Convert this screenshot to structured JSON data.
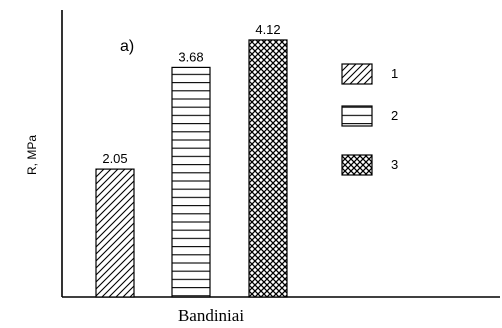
{
  "chart_data": {
    "type": "bar",
    "title": "",
    "panel_label": "a)",
    "xlabel": "Bandiniai",
    "ylabel": "R, MPa",
    "ylim": [
      0,
      4.6
    ],
    "grid": false,
    "legend_position": "right",
    "categories": [
      "1",
      "2",
      "3"
    ],
    "values": [
      2.05,
      3.68,
      4.12
    ],
    "value_labels": [
      "2.05",
      "3.68",
      "4.12"
    ],
    "patterns": [
      "diagonal-hatch",
      "horizontal-lines",
      "crosshatch"
    ],
    "legend": [
      {
        "label": "1",
        "pattern": "diagonal-hatch"
      },
      {
        "label": "2",
        "pattern": "horizontal-lines"
      },
      {
        "label": "3",
        "pattern": "crosshatch"
      }
    ],
    "colors": {
      "ink": "#000000",
      "background": "#ffffff"
    }
  }
}
